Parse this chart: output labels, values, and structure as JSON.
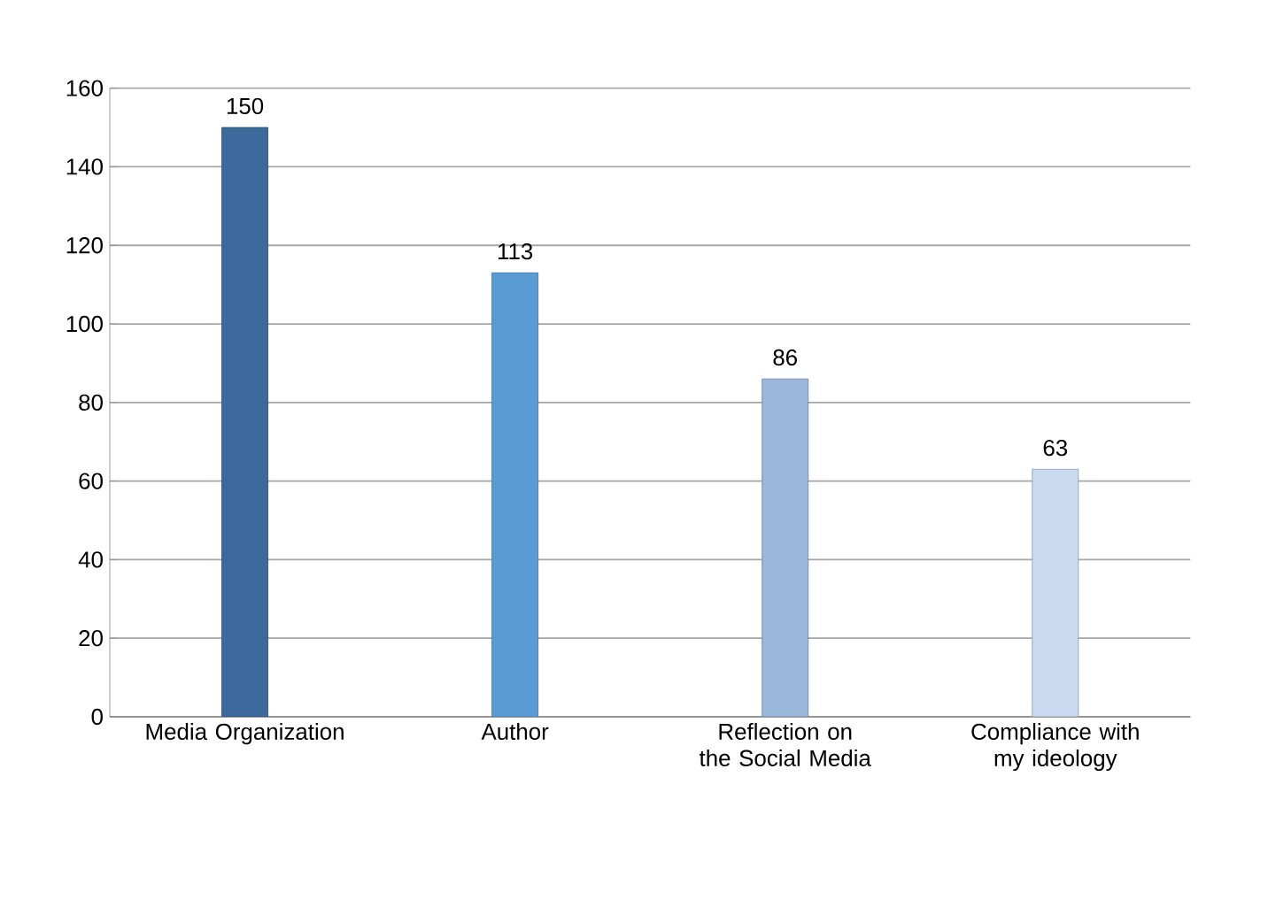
{
  "chart_data": {
    "type": "bar",
    "categories": [
      "Media Organization",
      "Author",
      "Reflection on the Social Media",
      "Compliance with my ideology"
    ],
    "values": [
      150,
      113,
      86,
      63
    ],
    "colors": [
      "#3c6a9c",
      "#5b9bd5",
      "#9bb7d9",
      "#c9daf0"
    ],
    "ylim": [
      0,
      160
    ],
    "yticks": [
      0,
      20,
      40,
      60,
      80,
      100,
      120,
      140,
      160
    ],
    "grid": "y",
    "data_labels": true
  }
}
